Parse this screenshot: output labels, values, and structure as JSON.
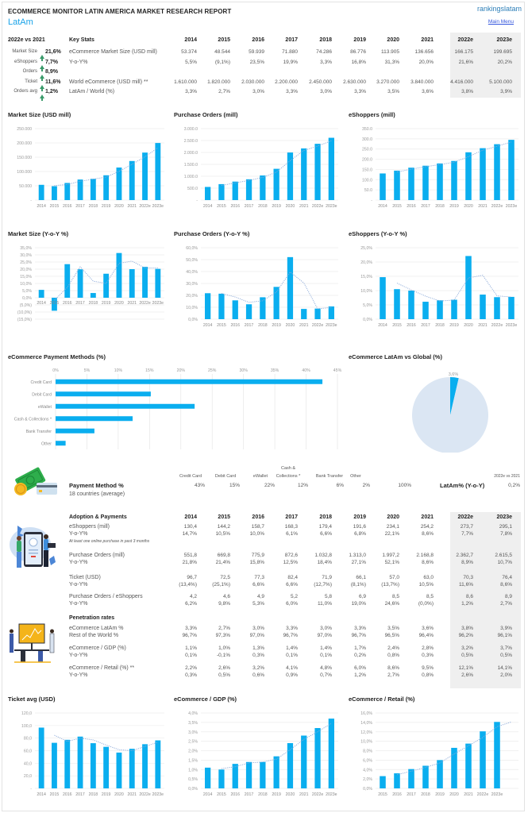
{
  "header": {
    "title": "ECOMMERCE MONITOR LATIN AMERICA MARKET RESEARCH REPORT",
    "region": "LatAm",
    "brand": "rankingslatam",
    "main_menu": "Main Menu"
  },
  "key_stats": {
    "compare_label": "2022e vs 2021",
    "title": "Key Stats",
    "highlights": [
      {
        "label": "Market Size",
        "value": "21,6%"
      },
      {
        "label": "eShoppers",
        "value": "7,7%"
      },
      {
        "label": "Orders",
        "value": "8,9%"
      },
      {
        "label": "Ticket",
        "value": "11,6%"
      },
      {
        "label": "Orders avg",
        "value": "1,2%"
      }
    ],
    "years": [
      "2014",
      "2015",
      "2016",
      "2017",
      "2018",
      "2019",
      "2020",
      "2021",
      "2022e",
      "2023e"
    ],
    "rows": [
      {
        "label": "eCommerce Market Size (USD mill)",
        "values": [
          "53.374",
          "48.544",
          "59.939",
          "71.880",
          "74.286",
          "86.776",
          "113.905",
          "136.656",
          "166.175",
          "199.695"
        ]
      },
      {
        "label": "Y-o-Y%",
        "values": [
          "5,5%",
          "(9,1%)",
          "23,5%",
          "19,9%",
          "3,3%",
          "16,8%",
          "31,3%",
          "20,0%",
          "21,6%",
          "20,2%"
        ]
      },
      {
        "label": "World eCommerce (USD mill) **",
        "values": [
          "1.610.000",
          "1.820.000",
          "2.030.000",
          "2.200.000",
          "2.450.000",
          "2.630.000",
          "3.270.000",
          "3.840.000",
          "4.416.000",
          "5.100.000"
        ]
      },
      {
        "label": "LatAm / World (%)",
        "values": [
          "3,3%",
          "2,7%",
          "3,0%",
          "3,3%",
          "3,0%",
          "3,3%",
          "3,5%",
          "3,6%",
          "3,8%",
          "3,9%"
        ]
      }
    ]
  },
  "colors": {
    "bar": "#0aaeef",
    "trend": "#8aa8d8",
    "pie_rest": "#dbe6f3",
    "accent": "#1aa3e8",
    "up_arrow": "#3a9a6a"
  },
  "chart_data": [
    {
      "id": "market_size",
      "type": "bar",
      "title": "Market Size (USD mill)",
      "categories": [
        "2014",
        "2015",
        "2016",
        "2017",
        "2018",
        "2019",
        "2020",
        "2021",
        "2022e",
        "2023e"
      ],
      "values": [
        53374,
        48544,
        59939,
        71880,
        74286,
        86776,
        113905,
        136656,
        166175,
        199695
      ],
      "ylim": [
        0,
        250000
      ],
      "yticks": [
        "-",
        "50.000",
        "100.000",
        "150.000",
        "200.000",
        "250.000"
      ],
      "trendline": "moving-average"
    },
    {
      "id": "purchase_orders",
      "type": "bar",
      "title": "Purchase Orders (mill)",
      "categories": [
        "2014",
        "2015",
        "2016",
        "2017",
        "2018",
        "2019",
        "2020",
        "2021",
        "2022e",
        "2023e"
      ],
      "values": [
        551.8,
        669.8,
        775.9,
        872.6,
        1032.8,
        1313.0,
        1997.2,
        2168.8,
        2362.7,
        2615.5
      ],
      "ylim": [
        0,
        3000
      ],
      "yticks": [
        "-",
        "500.0",
        "1.000.0",
        "1.500.0",
        "2.000.0",
        "2.500.0",
        "3.000.0"
      ],
      "trendline": "moving-average"
    },
    {
      "id": "eshoppers",
      "type": "bar",
      "title": "eShoppers (mill)",
      "categories": [
        "2014",
        "2015",
        "2016",
        "2017",
        "2018",
        "2019",
        "2020",
        "2021",
        "2022e",
        "2023e"
      ],
      "values": [
        130.4,
        144.2,
        158.7,
        168.3,
        179.4,
        191.6,
        234.1,
        254.2,
        273.7,
        295.1
      ],
      "ylim": [
        0,
        350
      ],
      "yticks": [
        "-",
        "50.0",
        "100.0",
        "150.0",
        "200.0",
        "250.0",
        "300.0",
        "350.0"
      ],
      "trendline": "moving-average"
    },
    {
      "id": "market_size_yoy",
      "type": "bar",
      "title": "Market Size (Y-o-Y %)",
      "categories": [
        "2014",
        "2015",
        "2016",
        "2017",
        "2018",
        "2019",
        "2020",
        "2021",
        "2022e",
        "2023e"
      ],
      "values": [
        5.5,
        -9.1,
        23.5,
        19.9,
        3.3,
        16.8,
        31.3,
        20.0,
        21.6,
        20.2
      ],
      "ylim": [
        -15,
        35
      ],
      "yticks": [
        "(15,0%)",
        "(10,0%)",
        "(5,0%)",
        "0,0%",
        "5,0%",
        "10,0%",
        "15,0%",
        "20,0%",
        "25,0%",
        "30,0%",
        "35,0%"
      ],
      "trendline": "moving-average"
    },
    {
      "id": "purchase_orders_yoy",
      "type": "bar",
      "title": "Purchase Orders (Y-o-Y %)",
      "categories": [
        "2014",
        "2015",
        "2016",
        "2017",
        "2018",
        "2019",
        "2020",
        "2021",
        "2022e",
        "2023e"
      ],
      "values": [
        21.8,
        21.4,
        15.8,
        12.5,
        18.4,
        27.1,
        52.1,
        8.6,
        8.9,
        10.7
      ],
      "ylim": [
        0,
        60
      ],
      "yticks": [
        "0,0%",
        "10,0%",
        "20,0%",
        "30,0%",
        "40,0%",
        "50,0%",
        "60,0%"
      ],
      "trendline": "moving-average"
    },
    {
      "id": "eshoppers_yoy",
      "type": "bar",
      "title": "eShoppers (Y-o-Y %)",
      "categories": [
        "2014",
        "2015",
        "2016",
        "2017",
        "2018",
        "2019",
        "2020",
        "2021",
        "2022e",
        "2023e"
      ],
      "values": [
        14.7,
        10.5,
        10.0,
        6.1,
        6.6,
        6.8,
        22.1,
        8.6,
        7.7,
        7.8
      ],
      "ylim": [
        0,
        25
      ],
      "yticks": [
        "0,0%",
        "5,0%",
        "10,0%",
        "15,0%",
        "20,0%",
        "25,0%"
      ],
      "trendline": "moving-average"
    },
    {
      "id": "payment_methods",
      "type": "hbar",
      "title": "eCommerce Payment Methods (%)",
      "categories": [
        "Credit Card",
        "Debit Card",
        "eWallet",
        "Cash & Collections *",
        "Bank Transfer",
        "Other"
      ],
      "values": [
        42.6,
        15.2,
        22.2,
        12.3,
        6.2,
        1.6
      ],
      "xlim": [
        0,
        45
      ],
      "xticks": [
        "0%",
        "5%",
        "10%",
        "15%",
        "20%",
        "25%",
        "30%",
        "35%",
        "40%",
        "45%"
      ]
    },
    {
      "id": "latam_vs_global",
      "type": "pie",
      "title": "eCommerce LatAm vs Global (%)",
      "slices": [
        {
          "name": "LatAm",
          "value": 3.6
        },
        {
          "name": "Rest of World",
          "value": 96.4
        }
      ],
      "label": "3,6%"
    },
    {
      "id": "ticket_avg",
      "type": "bar",
      "title": "Ticket avg (USD)",
      "categories": [
        "2014",
        "2015",
        "2016",
        "2017",
        "2018",
        "2019",
        "2020",
        "2021",
        "2022e",
        "2023e"
      ],
      "values": [
        96.7,
        72.5,
        77.3,
        82.4,
        71.9,
        66.1,
        57.0,
        63.0,
        70.3,
        76.4
      ],
      "ylim": [
        0,
        120
      ],
      "yticks": [
        "-",
        "20,0",
        "40,0",
        "60,0",
        "80,0",
        "100,0",
        "120,0"
      ],
      "trendline": "moving-average"
    },
    {
      "id": "ecommerce_gdp",
      "type": "bar",
      "title": "eCommerce / GDP (%)",
      "categories": [
        "2014",
        "2015",
        "2016",
        "2017",
        "2018",
        "2019",
        "2020",
        "2021",
        "2022e",
        "2023e"
      ],
      "values": [
        1.1,
        1.0,
        1.3,
        1.4,
        1.4,
        1.7,
        2.4,
        2.8,
        3.2,
        3.7
      ],
      "ylim": [
        0,
        4
      ],
      "yticks": [
        "0,0%",
        "0,5%",
        "1,0%",
        "1,5%",
        "2,0%",
        "2,5%",
        "3,0%",
        "3,5%",
        "4,0%"
      ],
      "trendline": "moving-average"
    },
    {
      "id": "ecommerce_retail",
      "type": "bar",
      "title": "eCommerce / Retail (%)",
      "categories": [
        "2015",
        "2016",
        "2017",
        "2018",
        "2019",
        "2020",
        "2021",
        "2022e",
        "2023e"
      ],
      "values": [
        2.6,
        3.2,
        4.1,
        4.8,
        6.0,
        8.6,
        9.5,
        12.1,
        14.1
      ],
      "ylim": [
        0,
        16
      ],
      "yticks": [
        "0,0%",
        "2,0%",
        "4,0%",
        "6,0%",
        "8,0%",
        "10,0%",
        "12,0%",
        "14,0%",
        "16,0%"
      ],
      "trendline": "moving-average",
      "extra_slots": 1
    }
  ],
  "payment_table": {
    "title": "Payment Method %",
    "subtitle": "18 countries (average)",
    "headers": [
      "Credit Card",
      "Debit Card",
      "eWallet",
      "Cash & Collections *",
      "Bank Transfer",
      "Other"
    ],
    "header_cash_line1": "Cash &",
    "header_cash_line2": "Collections *",
    "values": [
      "43%",
      "15%",
      "22%",
      "12%",
      "6%",
      "2%"
    ],
    "total": "100%",
    "yoy_label": "LatAm% (Y-o-Y)",
    "yoy_compare": "2022e vs 2021",
    "yoy_value": "0,2%"
  },
  "adoption": {
    "title": "Adoption & Payments",
    "years": [
      "2014",
      "2015",
      "2016",
      "2017",
      "2018",
      "2019",
      "2020",
      "2021",
      "2022e",
      "2023e"
    ],
    "note": "At least one online purchase in past 3 months",
    "groups": [
      {
        "label": "eShoppers (mill)",
        "values": [
          "130,4",
          "144,2",
          "158,7",
          "168,3",
          "179,4",
          "191,6",
          "234,1",
          "254,2",
          "273,7",
          "295,1"
        ],
        "sub_label": "Y-o-Y%",
        "sub_values": [
          "14,7%",
          "10,5%",
          "10,0%",
          "6,1%",
          "6,6%",
          "6,8%",
          "22,1%",
          "8,6%",
          "7,7%",
          "7,8%"
        ]
      },
      {
        "label": "Purchase Orders (mill)",
        "values": [
          "551,8",
          "669,8",
          "775,9",
          "872,6",
          "1.032,8",
          "1.313,0",
          "1.997,2",
          "2.168,8",
          "2.362,7",
          "2.615,5"
        ],
        "sub_label": "Y-o-Y%",
        "sub_values": [
          "21,8%",
          "21,4%",
          "15,8%",
          "12,5%",
          "18,4%",
          "27,1%",
          "52,1%",
          "8,6%",
          "8,9%",
          "10,7%"
        ]
      },
      {
        "label": "Ticket (USD)",
        "values": [
          "96,7",
          "72,5",
          "77,3",
          "82,4",
          "71,9",
          "66,1",
          "57,0",
          "63,0",
          "70,3",
          "76,4"
        ],
        "sub_label": "Y-o-Y%",
        "sub_values": [
          "(13,4%)",
          "(25,1%)",
          "6,6%",
          "6,6%",
          "(12,7%)",
          "(8,1%)",
          "(13,7%)",
          "10,5%",
          "11,6%",
          "8,6%"
        ]
      },
      {
        "label": "Purchase Orders / eShoppers",
        "values": [
          "4,2",
          "4,6",
          "4,9",
          "5,2",
          "5,8",
          "6,9",
          "8,5",
          "8,5",
          "8,6",
          "8,9"
        ],
        "sub_label": "Y-o-Y%",
        "sub_values": [
          "6,2%",
          "9,8%",
          "5,3%",
          "6,0%",
          "11,0%",
          "19,0%",
          "24,6%",
          "(0,0%)",
          "1,2%",
          "2,7%"
        ]
      }
    ]
  },
  "penetration": {
    "title": "Penetration rates",
    "groups": [
      {
        "label": "eCommerce LatAm %",
        "values": [
          "3,3%",
          "2,7%",
          "3,0%",
          "3,3%",
          "3,0%",
          "3,3%",
          "3,5%",
          "3,6%",
          "3,8%",
          "3,9%"
        ],
        "sub_label": "Rest of the World %",
        "sub_values": [
          "96,7%",
          "97,3%",
          "97,0%",
          "96,7%",
          "97,0%",
          "96,7%",
          "96,5%",
          "96,4%",
          "96,2%",
          "96,1%"
        ]
      },
      {
        "label": "eCommerce / GDP (%)",
        "values": [
          "1,1%",
          "1,0%",
          "1,3%",
          "1,4%",
          "1,4%",
          "1,7%",
          "2,4%",
          "2,8%",
          "3,2%",
          "3,7%"
        ],
        "sub_label": "Y-o-Y%",
        "sub_values": [
          "0,1%",
          "-0,1%",
          "0,3%",
          "0,1%",
          "0,1%",
          "0,2%",
          "0,8%",
          "0,3%",
          "0,5%",
          "0,5%"
        ]
      },
      {
        "label": "eCommerce / Retail (%) **",
        "values": [
          "2,2%",
          "2,6%",
          "3,2%",
          "4,1%",
          "4,8%",
          "6,0%",
          "8,6%",
          "9,5%",
          "12,1%",
          "14,1%"
        ],
        "sub_label": "Y-o-Y%",
        "sub_values": [
          "0,3%",
          "0,5%",
          "0,6%",
          "0,9%",
          "0,7%",
          "1,2%",
          "2,7%",
          "0,8%",
          "2,6%",
          "2,0%"
        ]
      }
    ]
  }
}
